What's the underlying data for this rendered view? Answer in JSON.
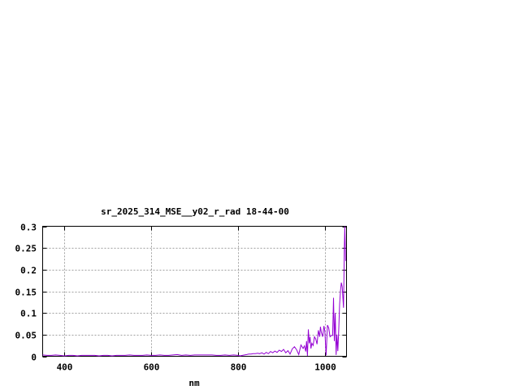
{
  "chart_data": {
    "type": "line",
    "title": "sr_2025_314_MSE__y02_r_rad 18-44-00",
    "xlabel": "nm",
    "ylabel": "",
    "xlim": [
      350,
      1050
    ],
    "ylim": [
      0,
      0.3
    ],
    "xticks": [
      400,
      600,
      800,
      1000
    ],
    "xtick_labels": [
      "400",
      "600",
      "800",
      "1000"
    ],
    "yticks": [
      0,
      0.05,
      0.1,
      0.15,
      0.2,
      0.25,
      0.3
    ],
    "ytick_labels": [
      "0",
      "0.05",
      "0.1",
      "0.15",
      "0.2",
      "0.25",
      "0.3"
    ],
    "grid": true,
    "line_color": "#9400d3",
    "series": [
      {
        "x": [
          350,
          360,
          370,
          380,
          390,
          400,
          410,
          420,
          430,
          440,
          450,
          460,
          470,
          480,
          490,
          500,
          510,
          520,
          530,
          540,
          550,
          560,
          570,
          580,
          590,
          600,
          610,
          620,
          630,
          640,
          650,
          660,
          670,
          680,
          690,
          700,
          710,
          720,
          730,
          740,
          750,
          760,
          770,
          780,
          790,
          800,
          805,
          810,
          815,
          820,
          825,
          830,
          835,
          840,
          845,
          850,
          855,
          860,
          865,
          870,
          875,
          880,
          885,
          890,
          895,
          900,
          905,
          910,
          915,
          920,
          925,
          930,
          935,
          940,
          945,
          950,
          953,
          956,
          958,
          960,
          962,
          964,
          966,
          968,
          970,
          973,
          976,
          979,
          982,
          985,
          988,
          990,
          992,
          995,
          998,
          1000,
          1003,
          1006,
          1009,
          1012,
          1015,
          1018,
          1020,
          1022,
          1024,
          1026,
          1028,
          1030,
          1032,
          1034,
          1036,
          1038,
          1040,
          1042,
          1043,
          1045,
          1046,
          1047,
          1048
        ],
        "y": [
          0.003,
          0.002,
          0.002,
          0.003,
          0.002,
          0.001,
          0.002,
          0.002,
          0.001,
          0.002,
          0.002,
          0.002,
          0.002,
          0.001,
          0.002,
          0.002,
          0.001,
          0.002,
          0.002,
          0.002,
          0.003,
          0.002,
          0.002,
          0.002,
          0.003,
          0.002,
          0.002,
          0.003,
          0.002,
          0.002,
          0.003,
          0.004,
          0.002,
          0.003,
          0.002,
          0.003,
          0.003,
          0.003,
          0.003,
          0.003,
          0.002,
          0.002,
          0.003,
          0.002,
          0.003,
          0.002,
          0.001,
          0.002,
          0.003,
          0.004,
          0.005,
          0.005,
          0.006,
          0.006,
          0.007,
          0.006,
          0.008,
          0.005,
          0.009,
          0.006,
          0.011,
          0.008,
          0.012,
          0.009,
          0.014,
          0.011,
          0.016,
          0.008,
          0.013,
          0.005,
          0.017,
          0.022,
          0.015,
          0.004,
          0.026,
          0.018,
          0.024,
          0.011,
          0.035,
          0.001,
          0.062,
          0.03,
          0.045,
          0.018,
          0.03,
          0.025,
          0.045,
          0.04,
          0.028,
          0.06,
          0.045,
          0.068,
          0.055,
          0.045,
          0.07,
          0.058,
          0.002,
          0.072,
          0.065,
          0.045,
          0.048,
          0.048,
          0.135,
          0.035,
          0.1,
          0.003,
          0.05,
          0.012,
          0.06,
          0.12,
          0.15,
          0.17,
          0.16,
          0.13,
          0.112,
          0.25,
          0.3,
          0.26,
          0.22
        ]
      }
    ]
  }
}
